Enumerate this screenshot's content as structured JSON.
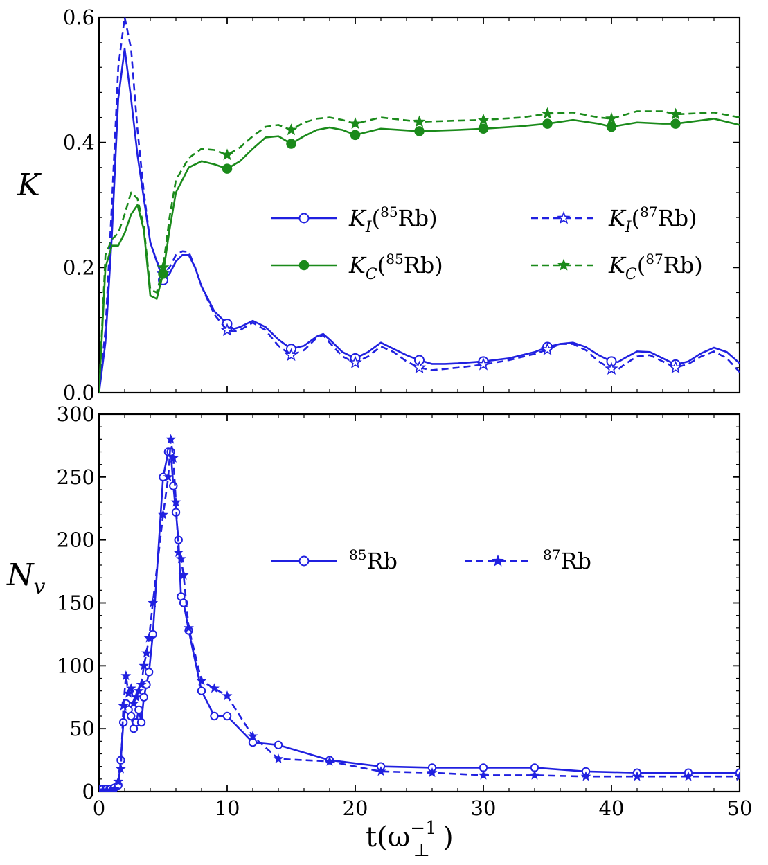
{
  "chart_data": [
    {
      "type": "line",
      "panel": "top",
      "ylabel": "K",
      "xlabel": "",
      "xlim": [
        0,
        50
      ],
      "ylim": [
        0,
        0.6
      ],
      "xticks": [
        0,
        10,
        20,
        30,
        40,
        50
      ],
      "yticks": [
        "0.0",
        "0.2",
        "0.4",
        "0.6"
      ],
      "legend_position": "center-right",
      "series": [
        {
          "name": "K_I(85Rb)",
          "legend": {
            "main": "K",
            "sub": "I",
            "sup": "85",
            "tail": "Rb"
          },
          "color": "#2020e0",
          "dash": "solid",
          "marker": "circle-open",
          "x": [
            0,
            0.5,
            1,
            1.5,
            2,
            2.5,
            3,
            3.5,
            4,
            4.5,
            5,
            5.5,
            6,
            6.5,
            7,
            7.5,
            8,
            9,
            10,
            10.5,
            11,
            12,
            13,
            14,
            15,
            16,
            17,
            17.5,
            18,
            19,
            20,
            21,
            22,
            23,
            24,
            25,
            26,
            27,
            28,
            30,
            32,
            34,
            35,
            36,
            37,
            38,
            39,
            40,
            40.5,
            41,
            42,
            43,
            44,
            45,
            46,
            47,
            48,
            49,
            50
          ],
          "y": [
            0,
            0.08,
            0.25,
            0.47,
            0.55,
            0.47,
            0.38,
            0.31,
            0.24,
            0.21,
            0.18,
            0.19,
            0.21,
            0.22,
            0.22,
            0.2,
            0.17,
            0.13,
            0.11,
            0.102,
            0.105,
            0.115,
            0.105,
            0.085,
            0.07,
            0.075,
            0.09,
            0.094,
            0.085,
            0.065,
            0.055,
            0.065,
            0.08,
            0.07,
            0.06,
            0.052,
            0.046,
            0.046,
            0.047,
            0.05,
            0.055,
            0.065,
            0.073,
            0.078,
            0.08,
            0.073,
            0.06,
            0.05,
            0.049,
            0.055,
            0.066,
            0.065,
            0.055,
            0.045,
            0.05,
            0.063,
            0.072,
            0.065,
            0.047
          ],
          "marker_x": [
            5,
            10,
            15,
            20,
            25,
            30,
            35,
            40,
            45
          ]
        },
        {
          "name": "K_I(87Rb)",
          "legend": {
            "main": "K",
            "sub": "I",
            "sup": "87",
            "tail": "Rb"
          },
          "color": "#2020e0",
          "dash": "dashed",
          "marker": "star-open",
          "x": [
            0,
            0.5,
            1,
            1.5,
            2,
            2.5,
            3,
            3.5,
            4,
            4.5,
            5,
            5.5,
            6,
            6.5,
            7,
            7.5,
            8,
            9,
            10,
            10.5,
            11,
            12,
            13,
            14,
            15,
            16,
            17,
            17.5,
            18,
            19,
            20,
            21,
            22,
            23,
            24,
            25,
            26,
            27,
            28,
            30,
            32,
            34,
            35,
            36,
            37,
            38,
            39,
            40,
            40.5,
            41,
            42,
            43,
            44,
            45,
            46,
            47,
            48,
            49,
            50
          ],
          "y": [
            0,
            0.1,
            0.3,
            0.52,
            0.6,
            0.55,
            0.42,
            0.32,
            0.24,
            0.21,
            0.19,
            0.2,
            0.22,
            0.226,
            0.225,
            0.2,
            0.17,
            0.125,
            0.1,
            0.098,
            0.1,
            0.112,
            0.1,
            0.075,
            0.06,
            0.068,
            0.088,
            0.092,
            0.08,
            0.058,
            0.048,
            0.058,
            0.074,
            0.065,
            0.05,
            0.04,
            0.036,
            0.038,
            0.04,
            0.045,
            0.052,
            0.062,
            0.069,
            0.078,
            0.078,
            0.068,
            0.05,
            0.038,
            0.037,
            0.045,
            0.058,
            0.06,
            0.05,
            0.04,
            0.046,
            0.058,
            0.066,
            0.055,
            0.033
          ],
          "marker_x": [
            5,
            10,
            15,
            20,
            25,
            30,
            35,
            40,
            45
          ]
        },
        {
          "name": "K_C(85Rb)",
          "legend": {
            "main": "K",
            "sub": "C",
            "sup": "85",
            "tail": "Rb"
          },
          "color": "#1a8a1a",
          "dash": "solid",
          "marker": "circle-filled",
          "x": [
            0,
            0.5,
            1,
            1.5,
            2,
            2.5,
            3,
            3.5,
            4,
            4.5,
            5,
            5.5,
            6,
            7,
            8,
            9,
            10,
            11,
            12,
            13,
            14,
            15,
            16,
            17,
            18,
            19,
            20,
            22,
            25,
            28,
            30,
            33,
            35,
            37,
            39,
            40,
            42,
            44,
            45,
            48,
            50
          ],
          "y": [
            0,
            0.2,
            0.235,
            0.235,
            0.255,
            0.285,
            0.3,
            0.26,
            0.155,
            0.15,
            0.19,
            0.26,
            0.32,
            0.36,
            0.37,
            0.365,
            0.358,
            0.37,
            0.39,
            0.408,
            0.41,
            0.398,
            0.41,
            0.42,
            0.424,
            0.42,
            0.412,
            0.422,
            0.418,
            0.42,
            0.422,
            0.426,
            0.43,
            0.436,
            0.43,
            0.425,
            0.432,
            0.43,
            0.43,
            0.438,
            0.428
          ],
          "marker_x": [
            5,
            10,
            15,
            20,
            25,
            30,
            35,
            40,
            45
          ]
        },
        {
          "name": "K_C(87Rb)",
          "legend": {
            "main": "K",
            "sub": "C",
            "sup": "87",
            "tail": "Rb"
          },
          "color": "#1a8a1a",
          "dash": "dashed",
          "marker": "star-filled",
          "x": [
            0,
            0.5,
            1,
            1.5,
            2,
            2.5,
            3,
            3.5,
            4,
            4.5,
            5,
            5.5,
            6,
            7,
            8,
            9,
            10,
            11,
            12,
            13,
            14,
            15,
            16,
            17,
            18,
            19,
            20,
            22,
            25,
            28,
            30,
            33,
            35,
            37,
            39,
            40,
            42,
            44,
            45,
            48,
            50
          ],
          "y": [
            0,
            0.22,
            0.245,
            0.255,
            0.285,
            0.32,
            0.31,
            0.265,
            0.165,
            0.16,
            0.2,
            0.28,
            0.34,
            0.375,
            0.39,
            0.388,
            0.38,
            0.392,
            0.41,
            0.425,
            0.428,
            0.42,
            0.432,
            0.438,
            0.44,
            0.436,
            0.43,
            0.44,
            0.433,
            0.435,
            0.436,
            0.44,
            0.446,
            0.448,
            0.44,
            0.438,
            0.45,
            0.45,
            0.445,
            0.448,
            0.44
          ],
          "marker_x": [
            5,
            10,
            15,
            20,
            25,
            30,
            35,
            40,
            45
          ]
        }
      ]
    },
    {
      "type": "line",
      "panel": "bottom",
      "ylabel": "N",
      "ylabel_sub": "v",
      "xlabel": "t(ω",
      "xlabel_sup": "−1",
      "xlabel_sub": "⊥",
      "xlabel_close": ")",
      "xlim": [
        0,
        50
      ],
      "ylim": [
        0,
        300
      ],
      "xticks": [
        0,
        10,
        20,
        30,
        40,
        50
      ],
      "yticks": [
        "0",
        "50",
        "100",
        "150",
        "200",
        "250",
        "300"
      ],
      "legend_position": "center-right",
      "series": [
        {
          "name": "85Rb",
          "legend": {
            "sup": "85",
            "tail": "Rb"
          },
          "color": "#2020e0",
          "dash": "solid",
          "marker": "circle-open",
          "x": [
            0,
            0.3,
            0.6,
            0.9,
            1.2,
            1.5,
            1.7,
            1.9,
            2.1,
            2.3,
            2.5,
            2.7,
            2.9,
            3.1,
            3.3,
            3.5,
            3.7,
            3.9,
            4.2,
            5.0,
            5.4,
            5.6,
            5.8,
            6.0,
            6.2,
            6.4,
            6.6,
            7.0,
            8.0,
            9.0,
            10.0,
            12.0,
            14.0,
            18.0,
            22.0,
            26.0,
            30.0,
            34.0,
            38.0,
            42.0,
            46.0,
            50.0
          ],
          "y": [
            2,
            2,
            2,
            2,
            3,
            5,
            25,
            55,
            70,
            65,
            60,
            50,
            55,
            65,
            55,
            75,
            85,
            95,
            125,
            250,
            270,
            270,
            243,
            222,
            200,
            155,
            150,
            128,
            80,
            60,
            60,
            39,
            37,
            25,
            20,
            19,
            19,
            19,
            16,
            15,
            15,
            15
          ],
          "marker_x": [
            0,
            0.3,
            0.6,
            0.9,
            1.2,
            1.5,
            1.7,
            1.9,
            2.1,
            2.3,
            2.5,
            2.7,
            2.9,
            3.1,
            3.3,
            3.5,
            3.7,
            3.9,
            4.2,
            5.0,
            5.4,
            5.6,
            5.8,
            6.0,
            6.2,
            6.4,
            6.6,
            7.0,
            8.0,
            9.0,
            10.0,
            12.0,
            14.0,
            18.0,
            22.0,
            26.0,
            30.0,
            34.0,
            38.0,
            42.0,
            46.0,
            50.0
          ]
        },
        {
          "name": "87Rb",
          "legend": {
            "sup": "87",
            "tail": "Rb"
          },
          "color": "#2020e0",
          "dash": "dashed",
          "marker": "star-filled",
          "x": [
            0,
            0.3,
            0.6,
            0.9,
            1.2,
            1.5,
            1.7,
            1.9,
            2.1,
            2.3,
            2.5,
            2.7,
            2.9,
            3.1,
            3.3,
            3.5,
            3.7,
            3.9,
            4.2,
            5.0,
            5.4,
            5.6,
            5.8,
            6.0,
            6.2,
            6.4,
            6.6,
            7.0,
            8.0,
            9.0,
            10.0,
            12.0,
            14.0,
            18.0,
            22.0,
            26.0,
            30.0,
            34.0,
            38.0,
            42.0,
            46.0,
            50.0
          ],
          "y": [
            1,
            1,
            1,
            1,
            2,
            8,
            18,
            68,
            92,
            78,
            82,
            70,
            75,
            80,
            85,
            100,
            110,
            122,
            150,
            220,
            250,
            280,
            265,
            230,
            190,
            185,
            172,
            130,
            88,
            82,
            76,
            44,
            26,
            24,
            16,
            15,
            13,
            13,
            12,
            12,
            12,
            12
          ],
          "marker_x": [
            0,
            0.3,
            0.6,
            0.9,
            1.2,
            1.5,
            1.7,
            1.9,
            2.1,
            2.3,
            2.5,
            2.7,
            2.9,
            3.1,
            3.3,
            3.5,
            3.7,
            3.9,
            4.2,
            5.0,
            5.4,
            5.6,
            5.8,
            6.0,
            6.2,
            6.4,
            6.6,
            7.0,
            8.0,
            9.0,
            10.0,
            12.0,
            14.0,
            18.0,
            22.0,
            26.0,
            30.0,
            34.0,
            38.0,
            42.0,
            46.0,
            50.0
          ]
        }
      ]
    }
  ]
}
